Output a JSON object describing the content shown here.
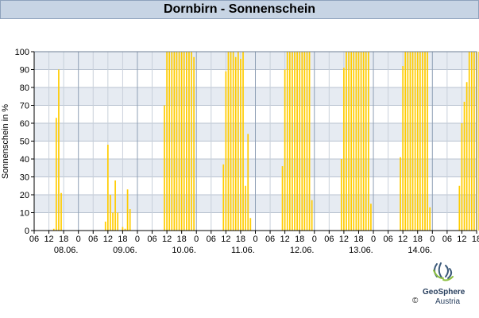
{
  "title": "Dornbirn - Sonnenschein",
  "footer": {
    "brand": "GeoSphere",
    "brand_sub": "Austria",
    "copyright": "©"
  },
  "chart_data": {
    "type": "bar",
    "title": "Dornbirn - Sonnenschein",
    "ylabel": "Sonnenschein in %",
    "xlabel": "",
    "ylim": [
      0,
      100
    ],
    "yticks": [
      0,
      10,
      20,
      30,
      40,
      50,
      60,
      70,
      80,
      90,
      100
    ],
    "xlim_hours": [
      0,
      180
    ],
    "hour_tick_labels": [
      "06",
      "12",
      "18",
      "0"
    ],
    "day_labels": [
      "08.06.",
      "09.06.",
      "10.06.",
      "11.06.",
      "12.06.",
      "13.06.",
      "14.06."
    ],
    "bar_color": "#ffcc00",
    "grid": true,
    "x_hours": [
      8,
      9,
      10,
      11,
      12,
      13,
      29,
      30,
      31,
      32,
      33,
      34,
      35,
      36,
      37,
      38,
      39,
      53,
      54,
      55,
      56,
      57,
      58,
      59,
      60,
      61,
      62,
      63,
      64,
      65,
      77,
      78,
      79,
      80,
      81,
      82,
      83,
      84,
      85,
      86,
      87,
      88,
      89,
      101,
      102,
      103,
      104,
      105,
      106,
      107,
      108,
      109,
      110,
      111,
      112,
      113,
      125,
      126,
      127,
      128,
      129,
      130,
      131,
      132,
      133,
      134,
      135,
      136,
      137,
      149,
      150,
      151,
      152,
      153,
      154,
      155,
      156,
      157,
      158,
      159,
      160,
      161,
      173,
      174,
      175,
      176,
      177,
      178,
      179,
      180,
      181,
      182,
      183,
      184,
      185
    ],
    "values": [
      1,
      63,
      90,
      21,
      0,
      0,
      5,
      48,
      20,
      10,
      28,
      10,
      0,
      2,
      1,
      23,
      12,
      70,
      100,
      100,
      100,
      100,
      100,
      100,
      100,
      100,
      100,
      100,
      100,
      97,
      37,
      89,
      100,
      100,
      100,
      97,
      100,
      96,
      100,
      25,
      54,
      7,
      0,
      36,
      90,
      100,
      100,
      100,
      100,
      100,
      100,
      100,
      100,
      100,
      100,
      17,
      40,
      91,
      100,
      100,
      100,
      100,
      100,
      100,
      100,
      100,
      100,
      100,
      15,
      41,
      92,
      100,
      100,
      100,
      100,
      100,
      100,
      100,
      100,
      100,
      100,
      13,
      25,
      60,
      72,
      83,
      100,
      100,
      100,
      100,
      100,
      92,
      0,
      0,
      0
    ]
  }
}
